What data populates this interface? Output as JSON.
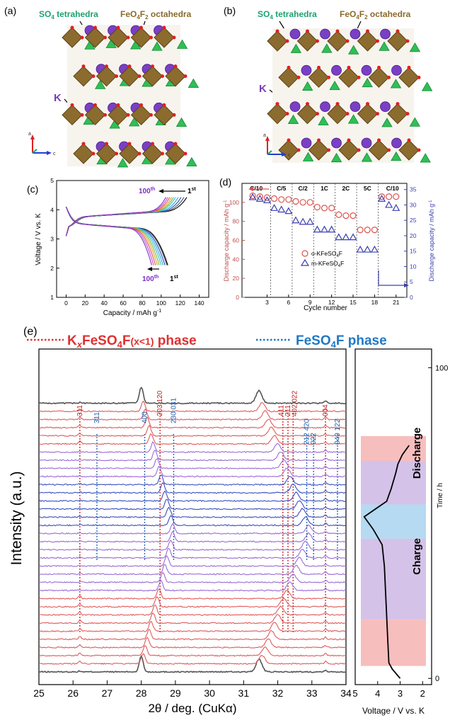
{
  "panels": {
    "a": {
      "label": "(a)",
      "so4_label": "SO",
      "so4_sub": "4",
      "so4_rest": " tetrahedra",
      "feo_label": "FeO",
      "feo_sub1": "4",
      "feo_mid": "F",
      "feo_sub2": "2",
      "feo_rest": " octahedra",
      "k_label": "K",
      "axis_a": "a",
      "axis_c": "c"
    },
    "b": {
      "label": "(b)",
      "so4_label": "SO",
      "so4_sub": "4",
      "so4_rest": " tetrahedra",
      "feo_label": "FeO",
      "feo_sub1": "4",
      "feo_mid": "F",
      "feo_sub2": "2",
      "feo_rest": " octahedra",
      "k_label": "K",
      "axis_a": "a",
      "axis_c": "c"
    },
    "c": {
      "label": "(c)"
    },
    "d": {
      "label": "(d)"
    },
    "e": {
      "label": "(e)",
      "phase1_pre": "K",
      "phase1_x": "x",
      "phase1_mid": "FeSO",
      "phase1_sub": "4",
      "phase1_post": "F",
      "phase1_cond": "(x<1)",
      "phase1_word": " phase",
      "phase2_pre": "FeSO",
      "phase2_sub": "4",
      "phase2_post": "F phase",
      "charge_label": "Charge",
      "discharge_label": "Discharge"
    }
  },
  "chart_data": [
    {
      "id": "c",
      "type": "line",
      "xlabel": "Capacity / mAh g",
      "xlabel_sup": "-1",
      "ylabel": "Voltage / V vs. K",
      "xlim": [
        -10,
        150
      ],
      "ylim": [
        1,
        5
      ],
      "xticks": [
        0,
        20,
        40,
        60,
        80,
        100,
        120,
        140
      ],
      "yticks": [
        1,
        2,
        3,
        4,
        5
      ],
      "annotations": [
        {
          "text": "100",
          "sup": "th",
          "where": "upper charge end"
        },
        {
          "text": "1",
          "sup": "st",
          "where": "upper charge end"
        },
        {
          "text": "100",
          "sup": "th",
          "where": "lower discharge end"
        },
        {
          "text": "1",
          "sup": "st",
          "where": "lower discharge end"
        }
      ],
      "series_colors": [
        "#000000",
        "#555555",
        "#1f4fd1",
        "#2aa7d6",
        "#35c4b8",
        "#7ab648",
        "#e0a020",
        "#e05050",
        "#c04ad0",
        "#7b2fbf"
      ],
      "charge_end_capacity": [
        127,
        124,
        121,
        118,
        115,
        113,
        111,
        109,
        107,
        105
      ],
      "discharge_end_capacity": [
        107,
        106,
        104,
        102,
        100,
        98,
        96,
        94,
        92,
        90
      ]
    },
    {
      "id": "d",
      "type": "scatter",
      "xlabel": "Cycle number",
      "ylabel_left": "Discharge capacity / mAh g",
      "ylabel_left_sup": "-1",
      "ylabel_right": "Discharge capacity / mAh g",
      "ylabel_right_sup": "-1",
      "xlim": [
        -0.5,
        22.5
      ],
      "ylim_left": [
        0,
        120
      ],
      "ylim_right": [
        0,
        37
      ],
      "xticks": [
        3,
        6,
        9,
        12,
        15,
        18,
        21
      ],
      "yticks_left": [
        0,
        20,
        40,
        60,
        80,
        100
      ],
      "yticks_right": [
        0,
        5,
        10,
        15,
        20,
        25,
        30,
        35
      ],
      "rate_labels": [
        "C/10",
        "C/5",
        "C/2",
        "1C",
        "2C",
        "5C",
        "C/10"
      ],
      "rate_dividers": [
        3,
        6,
        9,
        12,
        15,
        18
      ],
      "series": [
        {
          "name": "o-KFeSO",
          "name_sub": "4",
          "name_post": "F",
          "marker": "circle",
          "color": "#d9534f",
          "axis": "left",
          "x": [
            1,
            2,
            3,
            4,
            5,
            6,
            7,
            8,
            9,
            10,
            11,
            12,
            13,
            14,
            15,
            16,
            17,
            18,
            19,
            20,
            21
          ],
          "y": [
            107,
            106,
            105,
            104,
            103,
            103,
            101,
            100,
            100,
            95,
            94,
            94,
            87,
            86,
            86,
            71,
            71,
            71,
            106,
            106,
            106
          ]
        },
        {
          "name": "m-KFeSO",
          "name_sub": "4",
          "name_post": "F",
          "marker": "triangle",
          "color": "#3b3fb0",
          "axis": "right",
          "x": [
            1,
            2,
            3,
            4,
            5,
            6,
            7,
            8,
            9,
            10,
            11,
            12,
            13,
            14,
            15,
            16,
            17,
            18,
            19,
            20,
            21
          ],
          "y": [
            32.5,
            32,
            31.5,
            29,
            28.5,
            28,
            25,
            24.5,
            24.5,
            22,
            22,
            22,
            19.5,
            19.5,
            19.5,
            15.5,
            15.5,
            15.5,
            32,
            30,
            29
          ]
        }
      ]
    },
    {
      "id": "e",
      "type": "line",
      "xlabel": "2θ / deg. (CuKα)",
      "ylabel": "Intensity (a.u.)",
      "xlim": [
        25,
        34
      ],
      "xticks": [
        25,
        26,
        27,
        28,
        29,
        30,
        31,
        32,
        33,
        34
      ],
      "ylabel_right": "Time / h",
      "xlabel_right": "Voltage / V vs. K",
      "right_xlim": [
        5,
        1.6
      ],
      "right_xticks": [
        5,
        4,
        3,
        2
      ],
      "right_ylim": [
        -2,
        106
      ],
      "right_yticks": [
        0,
        100
      ],
      "pattern_count": 34,
      "pattern_colors_bottom_to_top": [
        "gray",
        "red",
        "red",
        "red",
        "red",
        "red",
        "red",
        "red",
        "red",
        "red",
        "purple",
        "purple",
        "purple",
        "purple",
        "purple",
        "purple",
        "purple",
        "purple",
        "blue",
        "blue",
        "blue",
        "blue",
        "blue",
        "blue",
        "purple",
        "purple",
        "purple",
        "purple",
        "red",
        "red",
        "red",
        "red",
        "red",
        "gray"
      ],
      "peak_labels_red": [
        "311",
        "203 120",
        "411",
        "211",
        "402 022",
        "004"
      ],
      "peak_labels_blue": [
        "311",
        "400",
        "230 031",
        "212 420",
        "022",
        "040 122"
      ],
      "peaks_red": [
        26.2,
        28.55,
        32.15,
        32.3,
        32.45,
        33.4
      ],
      "peaks_blue": [
        26.7,
        28.1,
        28.95,
        32.85,
        33.05,
        33.75
      ],
      "voltage_profile_time": [
        0,
        3,
        5,
        12,
        20,
        28,
        36,
        43,
        48,
        52,
        55,
        57,
        59,
        61,
        66,
        69,
        72,
        75
      ],
      "voltage_profile_voltage": [
        3.0,
        3.35,
        3.5,
        3.55,
        3.6,
        3.65,
        3.7,
        3.8,
        4.2,
        4.6,
        4.0,
        3.6,
        3.5,
        3.4,
        3.2,
        3.1,
        2.9,
        2.6
      ],
      "bands": [
        {
          "color": "#f6b3b3",
          "from": 4,
          "to": 19
        },
        {
          "color": "#cdb7e4",
          "from": 19,
          "to": 45
        },
        {
          "color": "#a8d3ee",
          "from": 45,
          "to": 56
        },
        {
          "color": "#cdb7e4",
          "from": 56,
          "to": 70
        },
        {
          "color": "#f6b3b3",
          "from": 70,
          "to": 78
        }
      ]
    }
  ]
}
